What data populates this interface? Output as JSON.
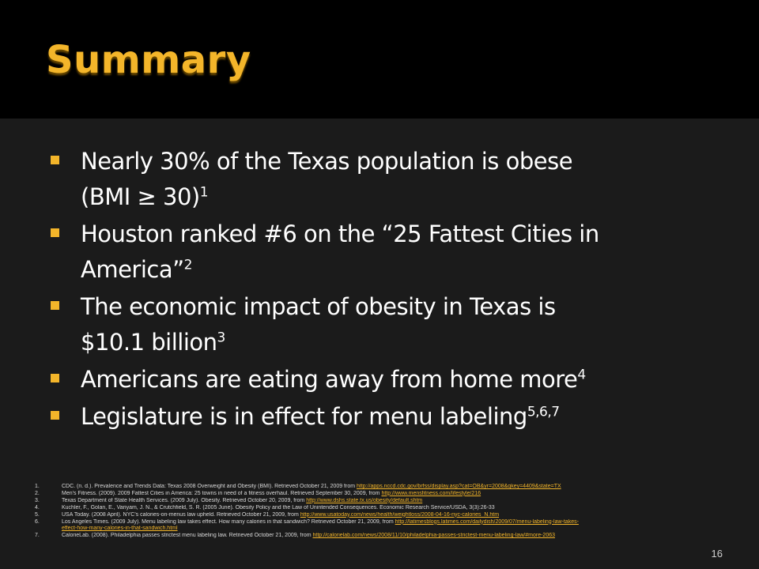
{
  "slide": {
    "title": "Summary",
    "page_number": "16",
    "accent_color": "#f3b52a"
  },
  "bullets": [
    {
      "text": "Nearly 30% of the Texas population is obese",
      "line2": "(BMI ≥ 30)",
      "sup": "1"
    },
    {
      "text": "Houston ranked #6 on the “25 Fattest Cities in",
      "line2": "America”",
      "sup": "2"
    },
    {
      "text": "The economic impact of obesity in Texas is",
      "line2": "$10.1 billion",
      "sup": "3"
    },
    {
      "text": "Americans are eating away from home more",
      "line2": "",
      "sup": "4"
    },
    {
      "text": "Legislature is in effect for menu labeling",
      "line2": "",
      "sup": "5,6,7"
    }
  ],
  "references": [
    {
      "num": "1.",
      "text": "CDC. (n. d.). Prevalence and Trends Data: Texas 2008 Overweight and Obesity (BMI). Retrieved October 21, 2009 from ",
      "link": "http://apps.nccd.cdc.gov/brfss/display.asp?cat=OB&yr=2008&qkey=4409&state=TX"
    },
    {
      "num": "2.",
      "text": "Men's Fitness. (2009). 2009 Fattest Cities in America: 25 towns in need of a fitness overhaul. Retrieved September 30, 2009, from ",
      "link": "http://www.mensfitness.com/lifestyle/216"
    },
    {
      "num": "3.",
      "text": "Texas Department of State Health Services. (2009 July). Obesity. Retrieved October 20, 2009, from ",
      "link": "http://www.dshs.state.tx.us/obesity/default.shtm"
    },
    {
      "num": "4.",
      "text": "Kuchler, F., Golan, E., Variyam, J. N., & Crutchfield, S. R. (2005 June). Obesity Policy and the Law of Unintended Consequences. Economic Research Service/USDA, 3(3):26-33",
      "link": ""
    },
    {
      "num": "5.",
      "text": "USA Today. (2008 April). NYC's calories-on-menus law upheld. Retrieved October 21, 2009, from ",
      "link": "http://www.usatoday.com/news/health/weightloss/2008-04-16-nyc-calories_N.htm"
    },
    {
      "num": "6.",
      "text": "Los Angeles Times. (2009 July). Menu labeling law takes effect. How many calories in that sandwich? Retrieved October 21, 2009, from ",
      "link": "http://latimesblogs.latimes.com/dailydish/2009/07/menu-labeling-law-takes-"
    },
    {
      "num": "",
      "text": "",
      "link": "effect-how-many-calories-in-that-sandwich.html"
    },
    {
      "num": "7.",
      "text": "CalorieLab. (2008). Philadelphia passes strictest menu labeling law. Retrieved October 21, 2009, from ",
      "link": "http://calorielab.com/news/2008/11/10/philadelphia-passes-strictest-menu-labeling-law/#more-2063"
    }
  ]
}
